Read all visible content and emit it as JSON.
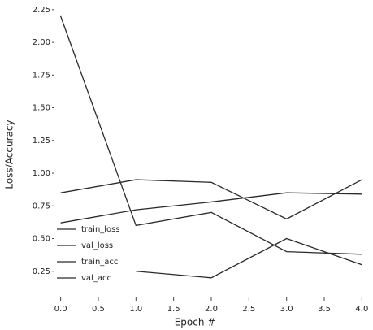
{
  "chart_data": {
    "type": "line",
    "x": [
      0,
      1,
      2,
      3,
      4
    ],
    "series": [
      {
        "name": "train_loss",
        "color": "#2a2a2a",
        "values": [
          2.2,
          0.6,
          0.7,
          0.4,
          0.38
        ]
      },
      {
        "name": "val_loss",
        "color": "#2a2a2a",
        "values": [
          0.62,
          0.72,
          0.78,
          0.85,
          0.84
        ]
      },
      {
        "name": "train_acc",
        "color": "#2a2a2a",
        "values": [
          0.85,
          0.95,
          0.93,
          0.65,
          0.95
        ]
      },
      {
        "name": "val_acc",
        "color": "#2a2a2a",
        "values": [
          null,
          0.25,
          0.2,
          0.5,
          0.3
        ]
      }
    ],
    "xlabel": "Epoch #",
    "ylabel": "Loss/Accuracy",
    "xlim": [
      -0.05,
      4.05
    ],
    "ylim": [
      0,
      2.28
    ],
    "xticks": [
      {
        "value": 0,
        "label": "0.0"
      },
      0.5,
      {
        "value": 1,
        "label": "1.0"
      },
      1.5,
      {
        "value": 2,
        "label": "2.0"
      },
      2.5,
      {
        "value": 3,
        "label": "3.0"
      },
      3.5,
      {
        "value": 4,
        "label": "4.0"
      }
    ],
    "yticks": [
      0.25,
      {
        "value": 0.5,
        "label": "0.50"
      },
      0.75,
      {
        "value": 1,
        "label": "1.00"
      },
      1.25,
      {
        "value": 1.5,
        "label": "1.50"
      },
      1.75,
      {
        "value": 2,
        "label": "2.00"
      },
      2.25
    ],
    "grid": false,
    "legend": "lower left"
  }
}
